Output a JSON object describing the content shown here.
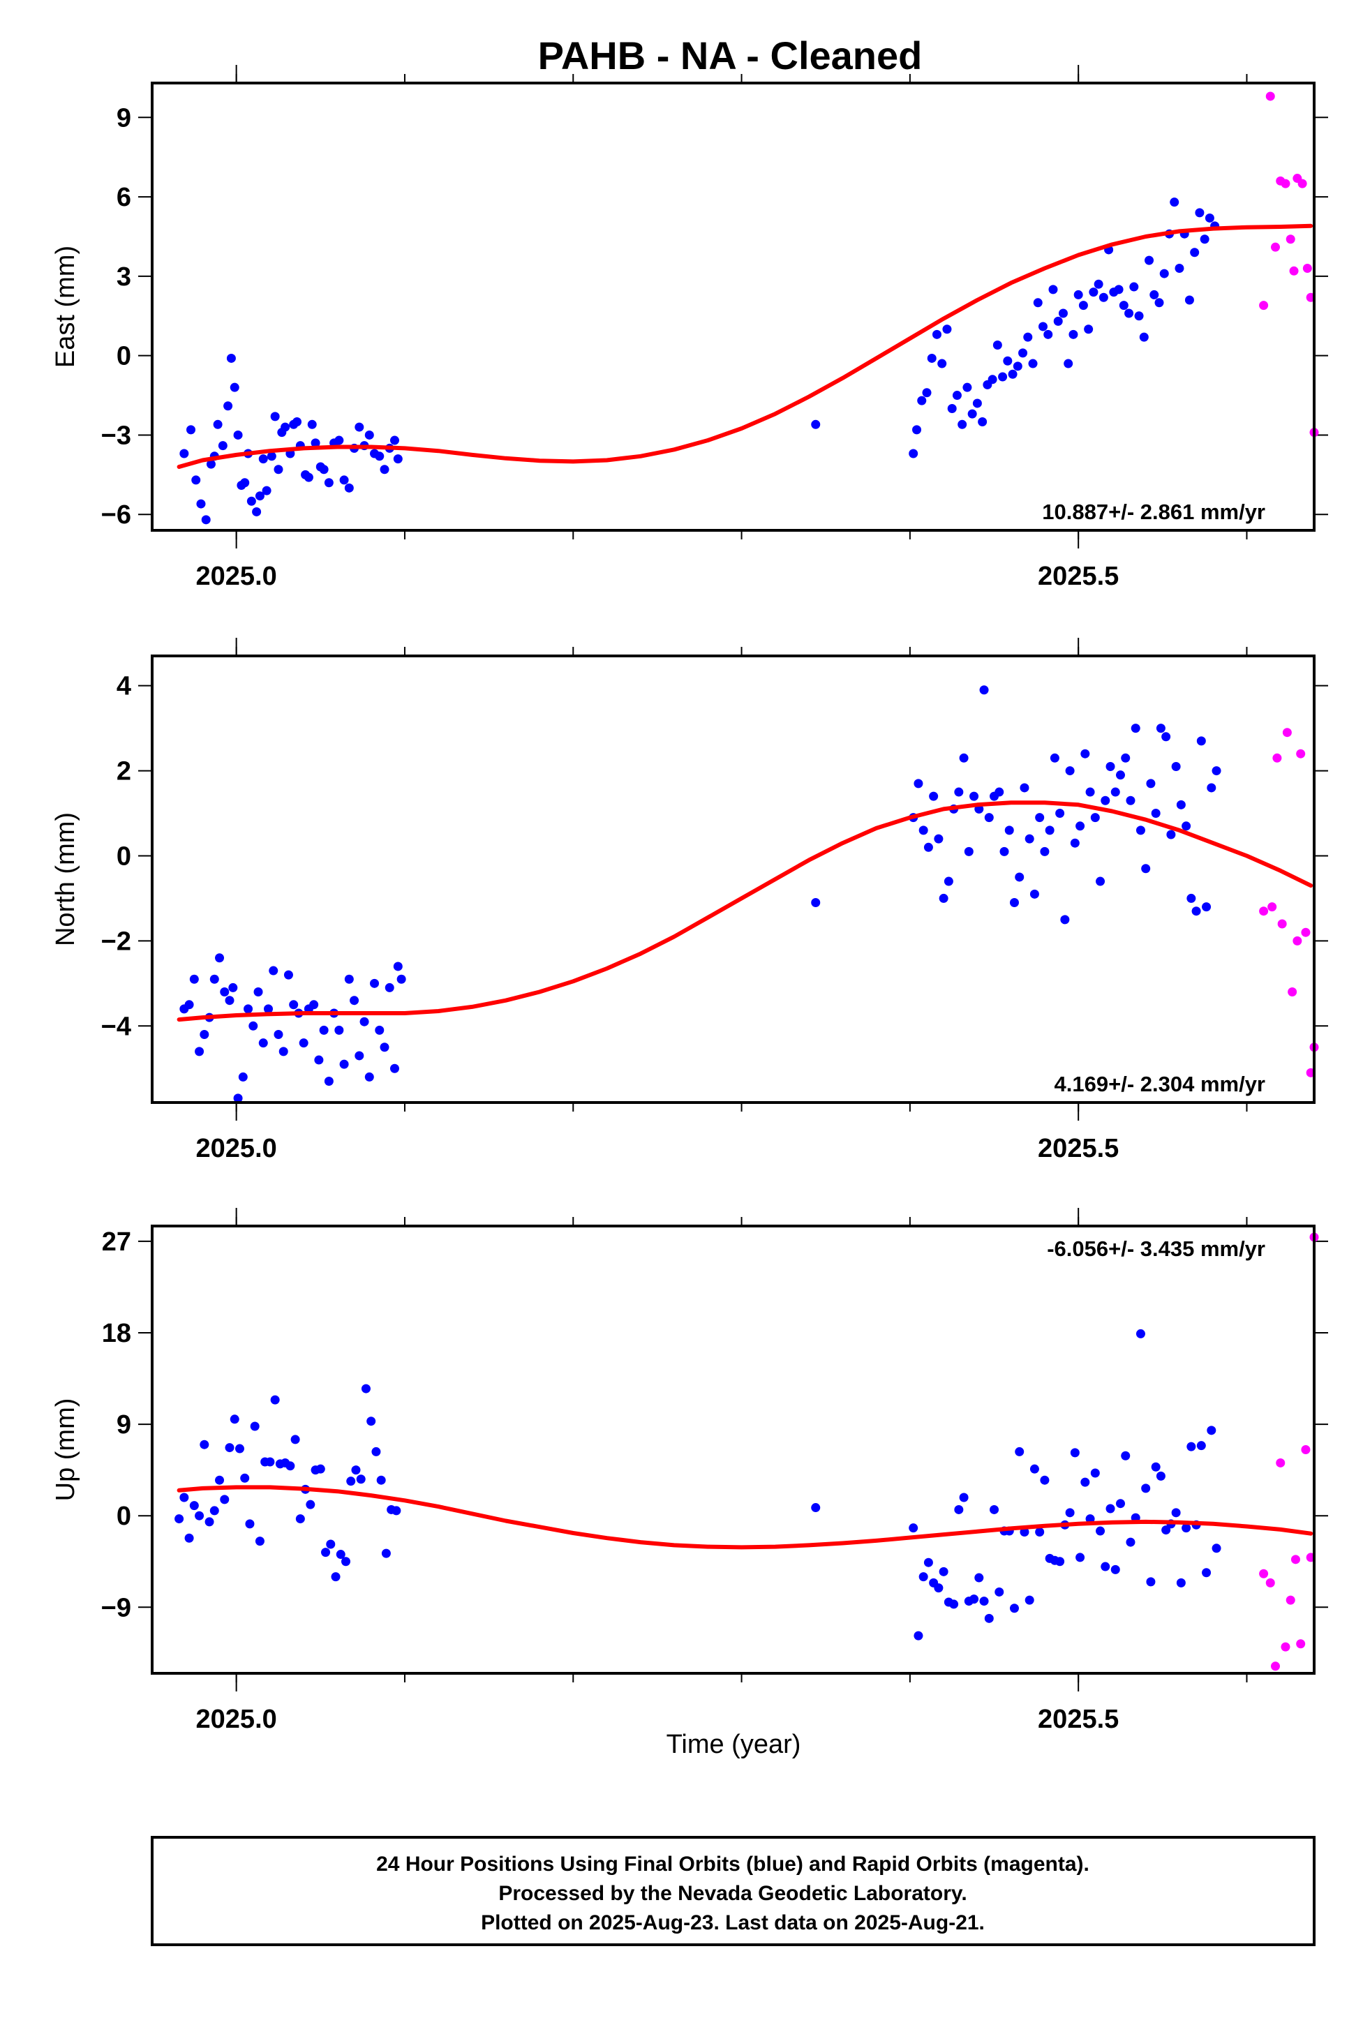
{
  "title": "PAHB  - NA - Cleaned",
  "xlabel": "Time (year)",
  "footer": [
    "24 Hour Positions Using Final Orbits (blue) and Rapid Orbits (magenta).",
    "Processed by the Nevada Geodetic Laboratory.",
    "Plotted on 2025-Aug-23. Last data on 2025-Aug-21."
  ],
  "colors": {
    "final": "#0000ff",
    "rapid": "#ff00ff",
    "model": "#ff0000",
    "axis": "#000000"
  },
  "chart_data": [
    {
      "type": "scatter",
      "ylabel": "East (mm)",
      "xlim": [
        2024.95,
        2025.64
      ],
      "ylim": [
        -6.6,
        10.3
      ],
      "yticks": [
        -6,
        -3,
        0,
        3,
        6,
        9
      ],
      "ytick_labels": [
        "−6",
        "−3",
        "0",
        "3",
        "6",
        "9"
      ],
      "xticks": [
        2025.0,
        2025.5
      ],
      "xtick_labels": [
        "2025.0",
        "2025.5"
      ],
      "rate": "10.887+/- 2.861 mm/yr",
      "rate_position": "bottom-right",
      "final": {
        "x": [
          2024.969,
          2024.973,
          2024.976,
          2024.979,
          2024.982,
          2024.985,
          2024.987,
          2024.989,
          2024.992,
          2024.995,
          2024.997,
          2024.999,
          2025.001,
          2025.003,
          2025.005,
          2025.007,
          2025.009,
          2025.012,
          2025.014,
          2025.016,
          2025.018,
          2025.021,
          2025.023,
          2025.025,
          2025.027,
          2025.029,
          2025.032,
          2025.034,
          2025.036,
          2025.038,
          2025.041,
          2025.043,
          2025.045,
          2025.047,
          2025.05,
          2025.052,
          2025.055,
          2025.058,
          2025.061,
          2025.064,
          2025.067,
          2025.07,
          2025.073,
          2025.076,
          2025.079,
          2025.082,
          2025.085,
          2025.088,
          2025.091,
          2025.094,
          2025.096,
          2025.344,
          2025.402,
          2025.404,
          2025.407,
          2025.41,
          2025.413,
          2025.416,
          2025.419,
          2025.422,
          2025.425,
          2025.428,
          2025.431,
          2025.434,
          2025.437,
          2025.44,
          2025.443,
          2025.446,
          2025.449,
          2025.452,
          2025.455,
          2025.458,
          2025.461,
          2025.464,
          2025.467,
          2025.47,
          2025.473,
          2025.476,
          2025.479,
          2025.482,
          2025.485,
          2025.488,
          2025.491,
          2025.494,
          2025.497,
          2025.5,
          2025.503,
          2025.506,
          2025.509,
          2025.512,
          2025.515,
          2025.518,
          2025.521,
          2025.524,
          2025.527,
          2025.53,
          2025.533,
          2025.536,
          2025.539,
          2025.542,
          2025.545,
          2025.548,
          2025.551,
          2025.554,
          2025.557,
          2025.56,
          2025.563,
          2025.566,
          2025.569,
          2025.572,
          2025.575,
          2025.578,
          2025.581
        ],
        "y": [
          -3.7,
          -2.8,
          -4.7,
          -5.6,
          -6.2,
          -4.1,
          -3.8,
          -2.6,
          -3.4,
          -1.9,
          -0.1,
          -1.2,
          -3.0,
          -4.9,
          -4.8,
          -3.7,
          -5.5,
          -5.9,
          -5.3,
          -3.9,
          -5.1,
          -3.8,
          -2.3,
          -4.3,
          -2.9,
          -2.7,
          -3.7,
          -2.6,
          -2.5,
          -3.4,
          -4.5,
          -4.6,
          -2.6,
          -3.3,
          -4.2,
          -4.3,
          -4.8,
          -3.3,
          -3.2,
          -4.7,
          -5.0,
          -3.5,
          -2.7,
          -3.4,
          -3.0,
          -3.7,
          -3.8,
          -4.3,
          -3.5,
          -3.2,
          -3.9,
          -2.6,
          -3.7,
          -2.8,
          -1.7,
          -1.4,
          -0.1,
          0.8,
          -0.3,
          1.0,
          -2.0,
          -1.5,
          -2.6,
          -1.2,
          -2.2,
          -1.8,
          -2.5,
          -1.1,
          -0.9,
          0.4,
          -0.8,
          -0.2,
          -0.7,
          -0.4,
          0.1,
          0.7,
          -0.3,
          2.0,
          1.1,
          0.8,
          2.5,
          1.3,
          1.6,
          -0.3,
          0.8,
          2.3,
          1.9,
          1.0,
          2.4,
          2.7,
          2.2,
          4.0,
          2.4,
          2.5,
          1.9,
          1.6,
          2.6,
          1.5,
          0.7,
          3.6,
          2.3,
          2.0,
          3.1,
          4.6,
          5.8,
          3.3,
          4.6,
          2.1,
          3.9,
          5.4,
          4.4,
          5.2,
          4.9
        ],
        "color": "#0000ff"
      },
      "rapid": {
        "x": [
          2025.61,
          2025.614,
          2025.617,
          2025.62,
          2025.623,
          2025.626,
          2025.628,
          2025.63,
          2025.633,
          2025.636,
          2025.638,
          2025.64
        ],
        "y": [
          1.9,
          9.8,
          4.1,
          6.6,
          6.5,
          4.4,
          3.2,
          6.7,
          6.5,
          3.3,
          2.2,
          -2.9
        ],
        "color": "#ff00ff"
      },
      "model": {
        "x": [
          2024.966,
          2024.98,
          2025.0,
          2025.02,
          2025.04,
          2025.06,
          2025.08,
          2025.1,
          2025.12,
          2025.14,
          2025.16,
          2025.18,
          2025.2,
          2025.22,
          2025.24,
          2025.26,
          2025.28,
          2025.3,
          2025.32,
          2025.34,
          2025.36,
          2025.38,
          2025.4,
          2025.42,
          2025.44,
          2025.46,
          2025.48,
          2025.5,
          2025.52,
          2025.54,
          2025.56,
          2025.58,
          2025.6,
          2025.62,
          2025.638
        ],
        "y": [
          -4.2,
          -3.95,
          -3.75,
          -3.6,
          -3.5,
          -3.45,
          -3.45,
          -3.5,
          -3.6,
          -3.75,
          -3.88,
          -3.97,
          -4.0,
          -3.95,
          -3.8,
          -3.55,
          -3.2,
          -2.75,
          -2.2,
          -1.55,
          -0.85,
          -0.1,
          0.65,
          1.4,
          2.1,
          2.75,
          3.3,
          3.8,
          4.2,
          4.5,
          4.7,
          4.8,
          4.85,
          4.87,
          4.9
        ],
        "color": "#ff0000"
      }
    },
    {
      "type": "scatter",
      "ylabel": "North (mm)",
      "xlim": [
        2024.95,
        2025.64
      ],
      "ylim": [
        -5.8,
        4.7
      ],
      "yticks": [
        -4,
        -2,
        0,
        2,
        4
      ],
      "ytick_labels": [
        "−4",
        "−2",
        "0",
        "2",
        "4"
      ],
      "xticks": [
        2025.0,
        2025.5
      ],
      "xtick_labels": [
        "2025.0",
        "2025.5"
      ],
      "rate": "4.169+/- 2.304 mm/yr",
      "rate_position": "bottom-right",
      "final": {
        "x": [
          2024.969,
          2024.972,
          2024.975,
          2024.978,
          2024.981,
          2024.984,
          2024.987,
          2024.99,
          2024.993,
          2024.996,
          2024.998,
          2025.001,
          2025.004,
          2025.007,
          2025.01,
          2025.013,
          2025.016,
          2025.019,
          2025.022,
          2025.025,
          2025.028,
          2025.031,
          2025.034,
          2025.037,
          2025.04,
          2025.043,
          2025.046,
          2025.049,
          2025.052,
          2025.055,
          2025.058,
          2025.061,
          2025.064,
          2025.067,
          2025.07,
          2025.073,
          2025.076,
          2025.079,
          2025.082,
          2025.085,
          2025.088,
          2025.091,
          2025.094,
          2025.096,
          2025.098,
          2025.344,
          2025.402,
          2025.405,
          2025.408,
          2025.411,
          2025.414,
          2025.417,
          2025.42,
          2025.423,
          2025.426,
          2025.429,
          2025.432,
          2025.435,
          2025.438,
          2025.441,
          2025.444,
          2025.447,
          2025.45,
          2025.453,
          2025.456,
          2025.459,
          2025.462,
          2025.465,
          2025.468,
          2025.471,
          2025.474,
          2025.477,
          2025.48,
          2025.483,
          2025.486,
          2025.489,
          2025.492,
          2025.495,
          2025.498,
          2025.501,
          2025.504,
          2025.507,
          2025.51,
          2025.513,
          2025.516,
          2025.519,
          2025.522,
          2025.525,
          2025.528,
          2025.531,
          2025.534,
          2025.537,
          2025.54,
          2025.543,
          2025.546,
          2025.549,
          2025.552,
          2025.555,
          2025.558,
          2025.561,
          2025.564,
          2025.567,
          2025.57,
          2025.573,
          2025.576,
          2025.579,
          2025.582
        ],
        "y": [
          -3.6,
          -3.5,
          -2.9,
          -4.6,
          -4.2,
          -3.8,
          -2.9,
          -2.4,
          -3.2,
          -3.4,
          -3.1,
          -5.7,
          -5.2,
          -3.6,
          -4.0,
          -3.2,
          -4.4,
          -3.6,
          -2.7,
          -4.2,
          -4.6,
          -2.8,
          -3.5,
          -3.7,
          -4.4,
          -3.6,
          -3.5,
          -4.8,
          -4.1,
          -5.3,
          -3.7,
          -4.1,
          -4.9,
          -2.9,
          -3.4,
          -4.7,
          -3.9,
          -5.2,
          -3.0,
          -4.1,
          -4.5,
          -3.1,
          -5.0,
          -2.6,
          -2.9,
          -1.1,
          0.9,
          1.7,
          0.6,
          0.2,
          1.4,
          0.4,
          -1.0,
          -0.6,
          1.1,
          1.5,
          2.3,
          0.1,
          1.4,
          1.1,
          3.9,
          0.9,
          1.4,
          1.5,
          0.1,
          0.6,
          -1.1,
          -0.5,
          1.6,
          0.4,
          -0.9,
          0.9,
          0.1,
          0.6,
          2.3,
          1.0,
          -1.5,
          2.0,
          0.3,
          0.7,
          2.4,
          1.5,
          0.9,
          -0.6,
          1.3,
          2.1,
          1.5,
          1.9,
          2.3,
          1.3,
          3.0,
          0.6,
          -0.3,
          1.7,
          1.0,
          3.0,
          2.8,
          0.5,
          2.1,
          1.2,
          0.7,
          -1.0,
          -1.3,
          2.7,
          -1.2,
          1.6,
          2.0
        ],
        "color": "#0000ff"
      },
      "rapid": {
        "x": [
          2025.61,
          2025.615,
          2025.618,
          2025.621,
          2025.624,
          2025.627,
          2025.63,
          2025.632,
          2025.635,
          2025.638,
          2025.64
        ],
        "y": [
          -1.3,
          -1.2,
          2.3,
          -1.6,
          2.9,
          -3.2,
          -2.0,
          2.4,
          -1.8,
          -5.1,
          -4.5
        ],
        "color": "#ff00ff"
      },
      "model": {
        "x": [
          2024.966,
          2024.98,
          2025.0,
          2025.02,
          2025.04,
          2025.06,
          2025.08,
          2025.1,
          2025.12,
          2025.14,
          2025.16,
          2025.18,
          2025.2,
          2025.22,
          2025.24,
          2025.26,
          2025.28,
          2025.3,
          2025.32,
          2025.34,
          2025.36,
          2025.38,
          2025.4,
          2025.42,
          2025.44,
          2025.46,
          2025.48,
          2025.5,
          2025.52,
          2025.54,
          2025.56,
          2025.58,
          2025.6,
          2025.62,
          2025.638
        ],
        "y": [
          -3.85,
          -3.8,
          -3.75,
          -3.72,
          -3.7,
          -3.7,
          -3.7,
          -3.7,
          -3.65,
          -3.55,
          -3.4,
          -3.2,
          -2.95,
          -2.65,
          -2.3,
          -1.9,
          -1.45,
          -1.0,
          -0.55,
          -0.1,
          0.3,
          0.65,
          0.9,
          1.1,
          1.2,
          1.25,
          1.25,
          1.2,
          1.05,
          0.85,
          0.6,
          0.3,
          0.0,
          -0.35,
          -0.7
        ],
        "color": "#ff0000"
      }
    },
    {
      "type": "scatter",
      "ylabel": "Up (mm)",
      "xlim": [
        2024.95,
        2025.64
      ],
      "ylim": [
        -15.5,
        28.5
      ],
      "yticks": [
        -9,
        0,
        9,
        18,
        27
      ],
      "ytick_labels": [
        "−9",
        "0",
        "9",
        "18",
        "27"
      ],
      "xticks": [
        2025.0,
        2025.5
      ],
      "xtick_labels": [
        "2025.0",
        "2025.5"
      ],
      "rate": "-6.056+/- 3.435 mm/yr",
      "rate_position": "top-right",
      "final": {
        "x": [
          2024.966,
          2024.969,
          2024.972,
          2024.975,
          2024.978,
          2024.981,
          2024.984,
          2024.987,
          2024.99,
          2024.993,
          2024.996,
          2024.999,
          2025.002,
          2025.005,
          2025.008,
          2025.011,
          2025.014,
          2025.017,
          2025.02,
          2025.023,
          2025.026,
          2025.029,
          2025.032,
          2025.035,
          2025.038,
          2025.041,
          2025.044,
          2025.047,
          2025.05,
          2025.053,
          2025.056,
          2025.059,
          2025.062,
          2025.065,
          2025.068,
          2025.071,
          2025.074,
          2025.077,
          2025.08,
          2025.083,
          2025.086,
          2025.089,
          2025.092,
          2025.095,
          2025.344,
          2025.402,
          2025.405,
          2025.408,
          2025.411,
          2025.414,
          2025.417,
          2025.42,
          2025.423,
          2025.426,
          2025.429,
          2025.432,
          2025.435,
          2025.438,
          2025.441,
          2025.444,
          2025.447,
          2025.45,
          2025.453,
          2025.456,
          2025.459,
          2025.462,
          2025.465,
          2025.468,
          2025.471,
          2025.474,
          2025.477,
          2025.48,
          2025.483,
          2025.486,
          2025.489,
          2025.492,
          2025.495,
          2025.498,
          2025.501,
          2025.504,
          2025.507,
          2025.51,
          2025.513,
          2025.516,
          2025.519,
          2025.522,
          2025.525,
          2025.528,
          2025.531,
          2025.534,
          2025.537,
          2025.54,
          2025.543,
          2025.546,
          2025.549,
          2025.552,
          2025.555,
          2025.558,
          2025.561,
          2025.564,
          2025.567,
          2025.57,
          2025.573,
          2025.576,
          2025.579,
          2025.582
        ],
        "y": [
          -0.3,
          1.8,
          -2.2,
          1.0,
          0.0,
          7.0,
          -0.6,
          0.5,
          3.5,
          1.6,
          6.7,
          9.5,
          6.6,
          3.7,
          -0.8,
          8.8,
          -2.5,
          5.3,
          5.3,
          11.4,
          5.1,
          5.2,
          4.9,
          7.5,
          -0.3,
          2.6,
          1.1,
          4.5,
          4.6,
          -3.6,
          -2.8,
          -6.0,
          -3.8,
          -4.5,
          3.4,
          4.5,
          3.6,
          12.5,
          9.3,
          6.3,
          3.5,
          -3.7,
          0.6,
          0.5,
          0.8,
          -1.2,
          -11.8,
          -6.0,
          -4.6,
          -6.6,
          -7.1,
          -5.5,
          -8.5,
          -8.7,
          0.6,
          1.8,
          -8.4,
          -8.2,
          -6.1,
          -8.4,
          -10.1,
          0.6,
          -7.5,
          -1.5,
          -1.5,
          -9.1,
          6.3,
          -1.6,
          -8.3,
          4.6,
          -1.6,
          3.5,
          -4.2,
          -4.4,
          -4.5,
          -0.9,
          0.3,
          6.2,
          -4.1,
          3.3,
          -0.3,
          4.2,
          -1.5,
          -5.0,
          0.7,
          -5.3,
          1.2,
          5.9,
          -2.6,
          -0.2,
          17.9,
          2.7,
          -6.5,
          4.8,
          3.9,
          -1.4,
          -0.8,
          0.3,
          -6.6,
          -1.2,
          6.8,
          -0.9,
          6.9,
          -5.6,
          8.4,
          -3.2
        ],
        "color": "#0000ff"
      },
      "rapid": {
        "x": [
          2025.61,
          2025.614,
          2025.617,
          2025.62,
          2025.623,
          2025.626,
          2025.629,
          2025.632,
          2025.635,
          2025.638,
          2025.64
        ],
        "y": [
          -5.7,
          -6.6,
          -14.8,
          5.2,
          -12.9,
          -8.3,
          -4.3,
          -12.6,
          6.5,
          -4.1,
          27.4
        ],
        "color": "#ff00ff"
      },
      "model": {
        "x": [
          2024.966,
          2024.98,
          2025.0,
          2025.02,
          2025.04,
          2025.06,
          2025.08,
          2025.1,
          2025.12,
          2025.14,
          2025.16,
          2025.18,
          2025.2,
          2025.22,
          2025.24,
          2025.26,
          2025.28,
          2025.3,
          2025.32,
          2025.34,
          2025.36,
          2025.38,
          2025.4,
          2025.42,
          2025.44,
          2025.46,
          2025.48,
          2025.5,
          2025.52,
          2025.54,
          2025.56,
          2025.58,
          2025.6,
          2025.62,
          2025.638
        ],
        "y": [
          2.5,
          2.7,
          2.8,
          2.8,
          2.65,
          2.4,
          2.0,
          1.5,
          0.9,
          0.2,
          -0.5,
          -1.1,
          -1.7,
          -2.2,
          -2.6,
          -2.9,
          -3.05,
          -3.1,
          -3.05,
          -2.9,
          -2.7,
          -2.45,
          -2.15,
          -1.85,
          -1.55,
          -1.25,
          -1.0,
          -0.8,
          -0.65,
          -0.6,
          -0.65,
          -0.8,
          -1.05,
          -1.35,
          -1.75
        ],
        "color": "#ff0000"
      }
    }
  ]
}
